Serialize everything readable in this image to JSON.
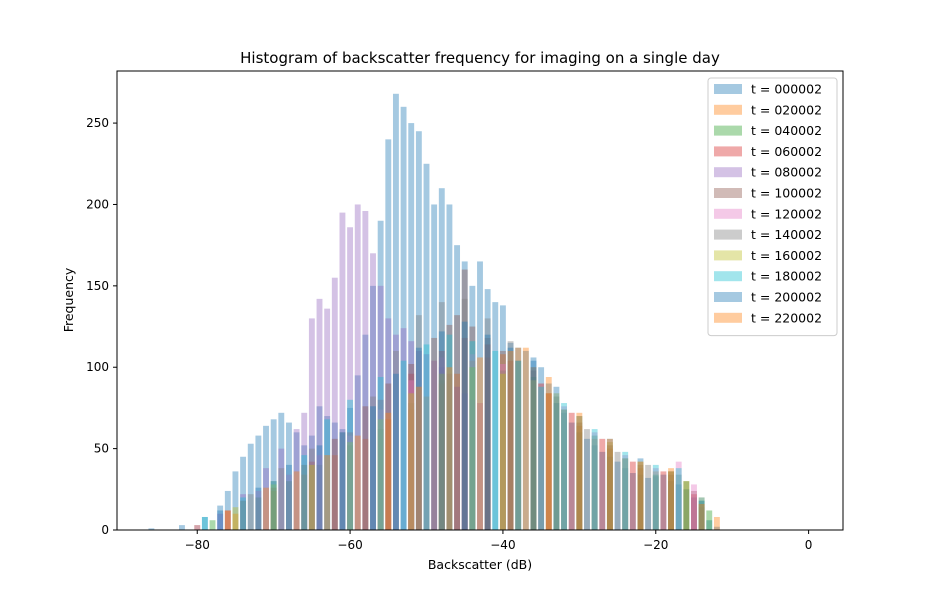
{
  "chart_data": {
    "type": "bar",
    "title": "Histogram of backscatter frequency for imaging on a single day",
    "xlabel": "Backscatter (dB)",
    "ylabel": "Frequency",
    "xlim": [
      -90.5,
      4.5
    ],
    "ylim": [
      0,
      282
    ],
    "xticks": [
      -80,
      -60,
      -40,
      -20,
      0
    ],
    "xtick_labels": [
      "−80",
      "−60",
      "−40",
      "−20",
      "0"
    ],
    "yticks": [
      0,
      50,
      100,
      150,
      200,
      250
    ],
    "ytick_labels": [
      "0",
      "50",
      "100",
      "150",
      "200",
      "250"
    ],
    "grid": false,
    "legend_position": "top-right",
    "bin_width": 0.77,
    "series": [
      {
        "name": "t = 000002",
        "color": "#1f77b4",
        "bins": [
          [
            -86,
            1
          ],
          [
            -82,
            3
          ],
          [
            -79,
            8
          ],
          [
            -77,
            15
          ],
          [
            -76,
            24
          ],
          [
            -75,
            36
          ],
          [
            -74,
            45
          ],
          [
            -73,
            53
          ],
          [
            -72,
            58
          ],
          [
            -71,
            64
          ],
          [
            -70,
            68
          ],
          [
            -69,
            72
          ],
          [
            -68,
            66
          ],
          [
            -67,
            60
          ],
          [
            -66,
            52
          ],
          [
            -65,
            58
          ],
          [
            -64,
            76
          ],
          [
            -63,
            70
          ],
          [
            -62,
            66
          ],
          [
            -61,
            62
          ],
          [
            -60,
            75
          ],
          [
            -59,
            95
          ],
          [
            -58,
            120
          ],
          [
            -57,
            150
          ],
          [
            -56,
            190
          ],
          [
            -55,
            240
          ],
          [
            -54,
            268
          ],
          [
            -53,
            260
          ],
          [
            -52,
            250
          ],
          [
            -51,
            245
          ],
          [
            -50,
            225
          ],
          [
            -49,
            200
          ],
          [
            -48,
            210
          ],
          [
            -47,
            200
          ],
          [
            -46,
            175
          ],
          [
            -45,
            165
          ],
          [
            -44,
            150
          ],
          [
            -43,
            165
          ],
          [
            -42,
            148
          ],
          [
            -41,
            140
          ],
          [
            -40,
            138
          ],
          [
            -39,
            115
          ],
          [
            -38,
            112
          ],
          [
            -37,
            110
          ],
          [
            -36,
            104
          ],
          [
            -35,
            100
          ],
          [
            -34,
            90
          ],
          [
            -33,
            78
          ],
          [
            -32,
            72
          ],
          [
            -31,
            66
          ],
          [
            -30,
            60
          ],
          [
            -29,
            56
          ],
          [
            -28,
            52
          ],
          [
            -27,
            48
          ],
          [
            -26,
            45
          ],
          [
            -25,
            42
          ],
          [
            -24,
            38
          ],
          [
            -23,
            35
          ],
          [
            -22,
            34
          ],
          [
            -21,
            32
          ],
          [
            -20,
            33
          ],
          [
            -19,
            34
          ],
          [
            -18,
            30
          ],
          [
            -17,
            28
          ],
          [
            -16,
            25
          ],
          [
            -15,
            20
          ],
          [
            -14,
            14
          ],
          [
            -13,
            6
          ],
          [
            -12,
            2
          ]
        ]
      },
      {
        "name": "t = 020002",
        "color": "#ff7f0e",
        "bins": [
          [
            -80,
            3
          ],
          [
            -75,
            10
          ],
          [
            -70,
            24
          ],
          [
            -66,
            34
          ],
          [
            -62,
            46
          ],
          [
            -58,
            56
          ],
          [
            -55,
            68
          ],
          [
            -52,
            74
          ],
          [
            -50,
            82
          ],
          [
            -48,
            90
          ],
          [
            -46,
            96
          ],
          [
            -44,
            104
          ],
          [
            -42,
            106
          ],
          [
            -40,
            108
          ],
          [
            -38,
            112
          ],
          [
            -36,
            100
          ],
          [
            -34,
            84
          ],
          [
            -32,
            74
          ],
          [
            -30,
            64
          ],
          [
            -28,
            56
          ],
          [
            -26,
            50
          ],
          [
            -24,
            44
          ],
          [
            -22,
            38
          ],
          [
            -20,
            36
          ],
          [
            -18,
            38
          ],
          [
            -16,
            30
          ],
          [
            -14,
            20
          ],
          [
            -12,
            8
          ]
        ]
      },
      {
        "name": "t = 040002",
        "color": "#2ca02c",
        "bins": [
          [
            -78,
            6
          ],
          [
            -72,
            20
          ],
          [
            -68,
            30
          ],
          [
            -64,
            40
          ],
          [
            -60,
            52
          ],
          [
            -56,
            62
          ],
          [
            -52,
            78
          ],
          [
            -48,
            92
          ],
          [
            -44,
            100
          ],
          [
            -40,
            98
          ],
          [
            -36,
            94
          ],
          [
            -32,
            74
          ],
          [
            -28,
            58
          ],
          [
            -24,
            44
          ],
          [
            -20,
            34
          ],
          [
            -16,
            30
          ],
          [
            -13,
            12
          ]
        ]
      },
      {
        "name": "t = 060002",
        "color": "#d62728",
        "bins": [
          [
            -76,
            12
          ],
          [
            -70,
            26
          ],
          [
            -65,
            42
          ],
          [
            -60,
            60
          ],
          [
            -56,
            80
          ],
          [
            -52,
            96
          ],
          [
            -48,
            110
          ],
          [
            -45,
            118
          ],
          [
            -42,
            114
          ],
          [
            -39,
            104
          ],
          [
            -35,
            90
          ],
          [
            -31,
            72
          ],
          [
            -27,
            56
          ],
          [
            -23,
            42
          ],
          [
            -19,
            36
          ],
          [
            -15,
            22
          ]
        ]
      },
      {
        "name": "t = 080002",
        "color": "#9467bd",
        "bins": [
          [
            -80,
            3
          ],
          [
            -77,
            10
          ],
          [
            -74,
            22
          ],
          [
            -71,
            38
          ],
          [
            -69,
            50
          ],
          [
            -67,
            62
          ],
          [
            -66,
            72
          ],
          [
            -65,
            130
          ],
          [
            -64,
            142
          ],
          [
            -63,
            136
          ],
          [
            -62,
            155
          ],
          [
            -61,
            195
          ],
          [
            -60,
            186
          ],
          [
            -59,
            200
          ],
          [
            -58,
            196
          ],
          [
            -57,
            170
          ],
          [
            -56,
            150
          ],
          [
            -55,
            130
          ],
          [
            -54,
            120
          ],
          [
            -53,
            124
          ],
          [
            -52,
            116
          ],
          [
            -51,
            110
          ],
          [
            -50,
            108
          ],
          [
            -49,
            104
          ],
          [
            -48,
            100
          ],
          [
            -47,
            96
          ],
          [
            -46,
            88
          ],
          [
            -45,
            84
          ],
          [
            -44,
            80
          ],
          [
            -43,
            78
          ]
        ]
      },
      {
        "name": "t = 100002",
        "color": "#8c564b",
        "bins": [
          [
            -74,
            18
          ],
          [
            -70,
            30
          ],
          [
            -66,
            40
          ],
          [
            -62,
            56
          ],
          [
            -58,
            76
          ],
          [
            -55,
            90
          ],
          [
            -52,
            102
          ],
          [
            -49,
            118
          ],
          [
            -47,
            126
          ],
          [
            -46,
            132
          ],
          [
            -45,
            160
          ],
          [
            -44,
            125
          ],
          [
            -42,
            118
          ],
          [
            -40,
            110
          ],
          [
            -38,
            104
          ],
          [
            -36,
            98
          ],
          [
            -34,
            84
          ],
          [
            -30,
            66
          ],
          [
            -26,
            52
          ],
          [
            -22,
            40
          ],
          [
            -18,
            34
          ],
          [
            -15,
            24
          ]
        ]
      },
      {
        "name": "t = 120002",
        "color": "#e377c2",
        "bins": [
          [
            -72,
            24
          ],
          [
            -68,
            34
          ],
          [
            -64,
            46
          ],
          [
            -60,
            58
          ],
          [
            -56,
            74
          ],
          [
            -52,
            92
          ],
          [
            -48,
            106
          ],
          [
            -44,
            108
          ],
          [
            -40,
            102
          ],
          [
            -36,
            92
          ],
          [
            -32,
            76
          ],
          [
            -28,
            60
          ],
          [
            -24,
            46
          ],
          [
            -20,
            38
          ],
          [
            -17,
            42
          ],
          [
            -15,
            28
          ]
        ]
      },
      {
        "name": "t = 140002",
        "color": "#7f7f7f",
        "bins": [
          [
            -73,
            22
          ],
          [
            -69,
            38
          ],
          [
            -65,
            50
          ],
          [
            -61,
            60
          ],
          [
            -57,
            82
          ],
          [
            -54,
            110
          ],
          [
            -51,
            132
          ],
          [
            -48,
            140
          ],
          [
            -45,
            142
          ],
          [
            -42,
            130
          ],
          [
            -39,
            116
          ],
          [
            -36,
            100
          ],
          [
            -33,
            82
          ],
          [
            -29,
            62
          ],
          [
            -25,
            48
          ],
          [
            -21,
            40
          ],
          [
            -17,
            34
          ],
          [
            -14,
            16
          ]
        ]
      },
      {
        "name": "t = 160002",
        "color": "#bcbd22",
        "bins": [
          [
            -75,
            14
          ],
          [
            -70,
            28
          ],
          [
            -65,
            40
          ],
          [
            -60,
            54
          ],
          [
            -56,
            68
          ],
          [
            -52,
            84
          ],
          [
            -48,
            96
          ],
          [
            -44,
            100
          ],
          [
            -40,
            96
          ],
          [
            -36,
            92
          ],
          [
            -33,
            84
          ],
          [
            -30,
            70
          ],
          [
            -26,
            54
          ],
          [
            -22,
            42
          ],
          [
            -18,
            36
          ],
          [
            -14,
            18
          ]
        ]
      },
      {
        "name": "t = 180002",
        "color": "#17becf",
        "bins": [
          [
            -79,
            8
          ],
          [
            -74,
            20
          ],
          [
            -70,
            30
          ],
          [
            -66,
            46
          ],
          [
            -63,
            68
          ],
          [
            -60,
            80
          ],
          [
            -56,
            94
          ],
          [
            -53,
            104
          ],
          [
            -50,
            114
          ],
          [
            -47,
            120
          ],
          [
            -44,
            116
          ],
          [
            -41,
            110
          ],
          [
            -38,
            104
          ],
          [
            -35,
            88
          ],
          [
            -32,
            78
          ],
          [
            -28,
            62
          ],
          [
            -24,
            48
          ],
          [
            -20,
            40
          ],
          [
            -17,
            38
          ],
          [
            -14,
            20
          ]
        ]
      },
      {
        "name": "t = 200002",
        "color": "#1f77b4",
        "bins": [
          [
            -77,
            12
          ],
          [
            -72,
            26
          ],
          [
            -68,
            40
          ],
          [
            -64,
            52
          ],
          [
            -61,
            60
          ],
          [
            -57,
            76
          ],
          [
            -54,
            96
          ],
          [
            -51,
            112
          ],
          [
            -48,
            122
          ],
          [
            -45,
            128
          ],
          [
            -42,
            120
          ],
          [
            -39,
            112
          ],
          [
            -36,
            106
          ],
          [
            -33,
            88
          ],
          [
            -30,
            70
          ],
          [
            -26,
            56
          ],
          [
            -22,
            44
          ],
          [
            -18,
            36
          ],
          [
            -14,
            18
          ]
        ]
      },
      {
        "name": "t = 220002",
        "color": "#ff7f0e",
        "bins": [
          [
            -76,
            12
          ],
          [
            -71,
            26
          ],
          [
            -67,
            36
          ],
          [
            -63,
            46
          ],
          [
            -59,
            58
          ],
          [
            -55,
            72
          ],
          [
            -51,
            88
          ],
          [
            -47,
            100
          ],
          [
            -43,
            106
          ],
          [
            -39,
            110
          ],
          [
            -37,
            112
          ],
          [
            -34,
            94
          ],
          [
            -30,
            72
          ],
          [
            -26,
            56
          ],
          [
            -22,
            42
          ],
          [
            -18,
            36
          ],
          [
            -14,
            16
          ]
        ]
      }
    ]
  }
}
